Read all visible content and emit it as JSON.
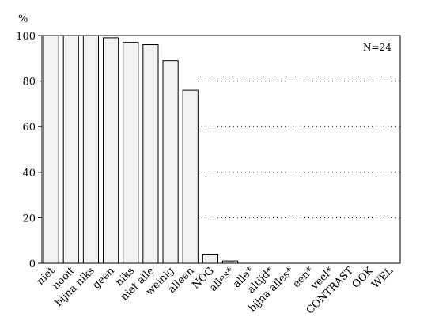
{
  "chart_data": {
    "type": "bar",
    "unit_label": "%",
    "annotation": "N=24",
    "categories": [
      "niet",
      "nooit",
      "bijna niks",
      "geen",
      "niks",
      "niet alle",
      "weinig",
      "alleen",
      "NOG",
      "alles*",
      "alle*",
      "altijd*",
      "bijna alles*",
      "een*",
      "veel*",
      "CONTRAST",
      "OOK",
      "WEL"
    ],
    "values": [
      100,
      100,
      100,
      99,
      97,
      96,
      89,
      76,
      4,
      1,
      0,
      0,
      0,
      0,
      0,
      0,
      0,
      0
    ],
    "ylim": [
      0,
      100
    ],
    "yticks": [
      0,
      20,
      40,
      60,
      80,
      100
    ],
    "grid": "horizontal dotted",
    "bar_color": "#f2f2f2"
  }
}
